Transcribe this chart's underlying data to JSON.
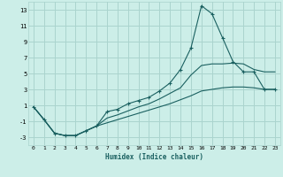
{
  "title": "",
  "xlabel": "Humidex (Indice chaleur)",
  "bg_color": "#cceee8",
  "grid_color": "#aad4ce",
  "line_color": "#1a6060",
  "xlim": [
    -0.5,
    23.5
  ],
  "ylim": [
    -4,
    14
  ],
  "xticks": [
    0,
    1,
    2,
    3,
    4,
    5,
    6,
    7,
    8,
    9,
    10,
    11,
    12,
    13,
    14,
    15,
    16,
    17,
    18,
    19,
    20,
    21,
    22,
    23
  ],
  "yticks": [
    -3,
    -1,
    1,
    3,
    5,
    7,
    9,
    11,
    13
  ],
  "series": [
    {
      "x": [
        0,
        1,
        2,
        3,
        4,
        5,
        6,
        7,
        8,
        9,
        10,
        11,
        12,
        13,
        14,
        15,
        16,
        17,
        18,
        19,
        20,
        21,
        22,
        23
      ],
      "y": [
        0.8,
        -0.8,
        -2.5,
        -2.8,
        -2.8,
        -2.2,
        -1.6,
        0.2,
        0.5,
        1.2,
        1.6,
        2.0,
        2.8,
        3.8,
        5.5,
        8.2,
        13.5,
        12.5,
        9.5,
        6.5,
        5.2,
        5.2,
        3.0,
        3.0
      ],
      "marker": "+"
    },
    {
      "x": [
        0,
        1,
        2,
        3,
        4,
        5,
        6,
        7,
        8,
        9,
        10,
        11,
        12,
        13,
        14,
        15,
        16,
        17,
        18,
        19,
        20,
        21,
        22,
        23
      ],
      "y": [
        0.8,
        -0.8,
        -2.5,
        -2.8,
        -2.8,
        -2.2,
        -1.6,
        -0.6,
        -0.2,
        0.3,
        0.8,
        1.2,
        1.8,
        2.5,
        3.2,
        4.8,
        6.0,
        6.2,
        6.2,
        6.3,
        6.2,
        5.5,
        5.2,
        5.2
      ],
      "marker": null
    },
    {
      "x": [
        0,
        1,
        2,
        3,
        4,
        5,
        6,
        7,
        8,
        9,
        10,
        11,
        12,
        13,
        14,
        15,
        16,
        17,
        18,
        19,
        20,
        21,
        22,
        23
      ],
      "y": [
        0.8,
        -0.8,
        -2.5,
        -2.8,
        -2.8,
        -2.2,
        -1.6,
        -1.2,
        -0.8,
        -0.4,
        0.0,
        0.4,
        0.8,
        1.2,
        1.7,
        2.2,
        2.8,
        3.0,
        3.2,
        3.3,
        3.3,
        3.2,
        3.0,
        3.0
      ],
      "marker": null
    }
  ]
}
